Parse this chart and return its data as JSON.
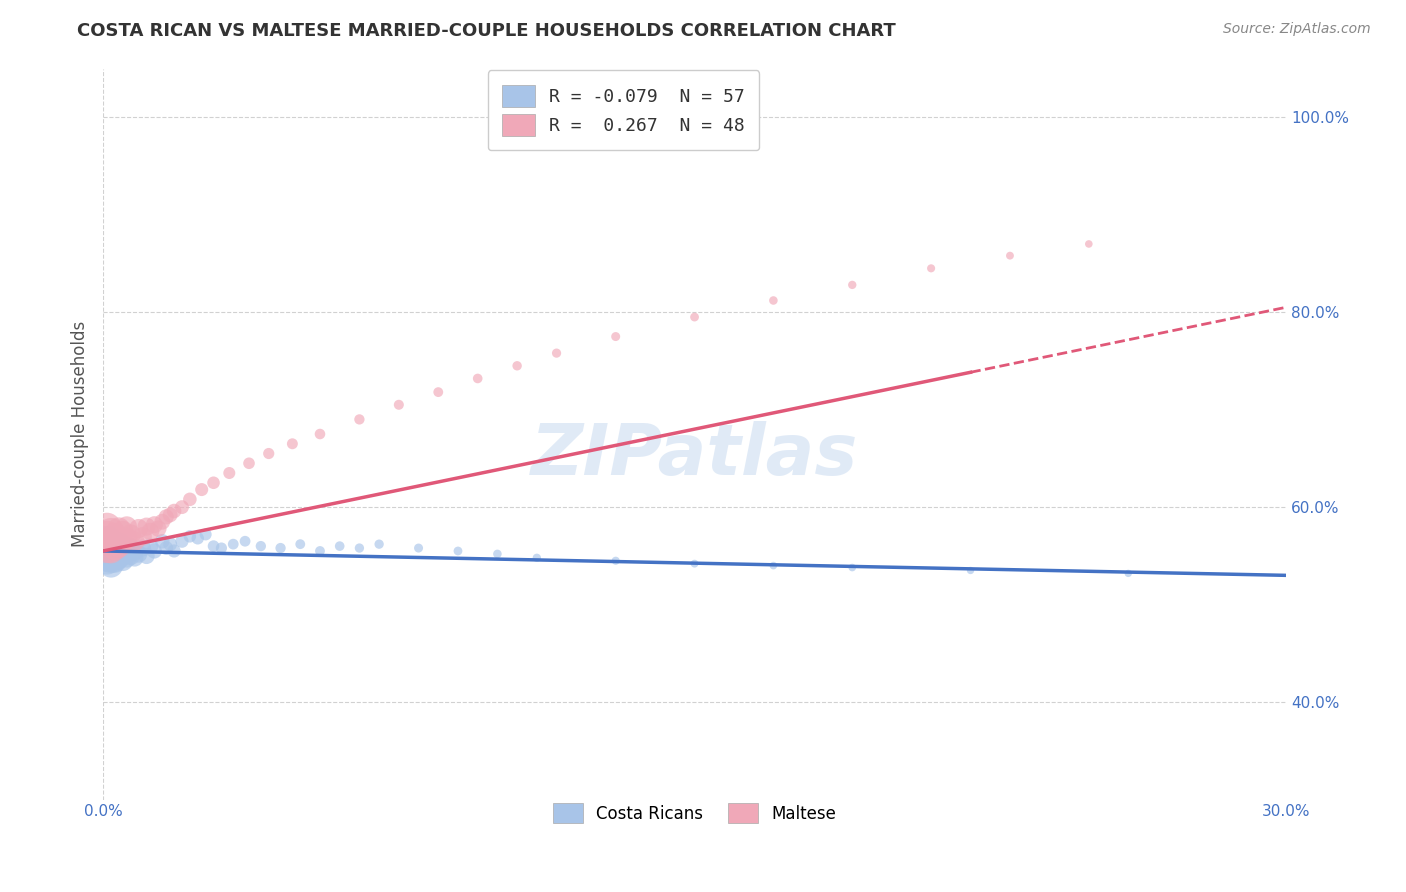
{
  "title": "COSTA RICAN VS MALTESE MARRIED-COUPLE HOUSEHOLDS CORRELATION CHART",
  "source": "Source: ZipAtlas.com",
  "ylabel": "Married-couple Households",
  "xmin": 0.0,
  "xmax": 0.3,
  "ymin": 0.3,
  "ymax": 1.05,
  "xtick_positions": [
    0.0,
    0.3
  ],
  "xtick_labels": [
    "0.0%",
    "30.0%"
  ],
  "ytick_positions": [
    0.4,
    0.6,
    0.8,
    1.0
  ],
  "ytick_labels": [
    "40.0%",
    "60.0%",
    "80.0%",
    "100.0%"
  ],
  "costa_rican_R": -0.079,
  "costa_rican_N": 57,
  "maltese_R": 0.267,
  "maltese_N": 48,
  "costa_rican_color": "#a8c4e8",
  "maltese_color": "#f0a8b8",
  "trend_costa_rican_color": "#4472c4",
  "trend_maltese_color": "#e05878",
  "watermark_color": "#c8daf0",
  "legend_CR_label": "Costa Ricans",
  "legend_M_label": "Maltese",
  "costa_rican_x": [
    0.001,
    0.001,
    0.001,
    0.001,
    0.002,
    0.002,
    0.002,
    0.002,
    0.003,
    0.003,
    0.003,
    0.004,
    0.004,
    0.004,
    0.005,
    0.005,
    0.005,
    0.006,
    0.006,
    0.007,
    0.007,
    0.008,
    0.008,
    0.009,
    0.01,
    0.011,
    0.012,
    0.013,
    0.015,
    0.016,
    0.017,
    0.018,
    0.02,
    0.022,
    0.024,
    0.026,
    0.028,
    0.03,
    0.033,
    0.036,
    0.04,
    0.045,
    0.05,
    0.055,
    0.06,
    0.065,
    0.07,
    0.08,
    0.09,
    0.1,
    0.11,
    0.13,
    0.15,
    0.17,
    0.19,
    0.22,
    0.26
  ],
  "costa_rican_y": [
    0.555,
    0.56,
    0.565,
    0.545,
    0.55,
    0.555,
    0.56,
    0.54,
    0.55,
    0.558,
    0.545,
    0.555,
    0.562,
    0.548,
    0.552,
    0.56,
    0.545,
    0.555,
    0.548,
    0.558,
    0.55,
    0.555,
    0.548,
    0.552,
    0.558,
    0.55,
    0.56,
    0.555,
    0.565,
    0.558,
    0.562,
    0.555,
    0.565,
    0.57,
    0.568,
    0.572,
    0.56,
    0.558,
    0.562,
    0.565,
    0.56,
    0.558,
    0.562,
    0.555,
    0.56,
    0.558,
    0.562,
    0.558,
    0.555,
    0.552,
    0.548,
    0.545,
    0.542,
    0.54,
    0.538,
    0.535,
    0.532
  ],
  "costa_rican_size": [
    900,
    700,
    500,
    400,
    600,
    500,
    400,
    300,
    400,
    350,
    300,
    300,
    280,
    260,
    260,
    240,
    220,
    220,
    200,
    200,
    180,
    180,
    160,
    160,
    150,
    140,
    130,
    120,
    110,
    100,
    100,
    90,
    90,
    80,
    80,
    75,
    70,
    65,
    60,
    60,
    55,
    55,
    50,
    50,
    48,
    45,
    45,
    42,
    40,
    38,
    36,
    34,
    32,
    30,
    30,
    28,
    28
  ],
  "maltese_x": [
    0.001,
    0.001,
    0.001,
    0.002,
    0.002,
    0.002,
    0.003,
    0.003,
    0.004,
    0.004,
    0.005,
    0.005,
    0.006,
    0.006,
    0.007,
    0.008,
    0.009,
    0.01,
    0.011,
    0.012,
    0.013,
    0.014,
    0.015,
    0.016,
    0.017,
    0.018,
    0.02,
    0.022,
    0.025,
    0.028,
    0.032,
    0.037,
    0.042,
    0.048,
    0.055,
    0.065,
    0.075,
    0.085,
    0.095,
    0.105,
    0.115,
    0.13,
    0.15,
    0.17,
    0.19,
    0.21,
    0.23,
    0.25
  ],
  "maltese_y": [
    0.56,
    0.57,
    0.58,
    0.565,
    0.575,
    0.555,
    0.558,
    0.572,
    0.56,
    0.578,
    0.565,
    0.575,
    0.568,
    0.58,
    0.572,
    0.565,
    0.578,
    0.57,
    0.58,
    0.575,
    0.582,
    0.578,
    0.585,
    0.59,
    0.592,
    0.596,
    0.6,
    0.608,
    0.618,
    0.625,
    0.635,
    0.645,
    0.655,
    0.665,
    0.675,
    0.69,
    0.705,
    0.718,
    0.732,
    0.745,
    0.758,
    0.775,
    0.795,
    0.812,
    0.828,
    0.845,
    0.858,
    0.87
  ],
  "maltese_size": [
    600,
    500,
    400,
    450,
    380,
    320,
    320,
    280,
    280,
    260,
    260,
    240,
    230,
    220,
    210,
    200,
    190,
    180,
    170,
    160,
    150,
    140,
    130,
    120,
    115,
    110,
    100,
    95,
    88,
    82,
    75,
    70,
    65,
    62,
    58,
    55,
    52,
    50,
    48,
    46,
    44,
    42,
    40,
    38,
    36,
    34,
    32,
    30
  ],
  "background_color": "#ffffff",
  "grid_color": "#cccccc",
  "title_color": "#333333",
  "axis_label_color": "#555555",
  "tick_color": "#4472c4"
}
